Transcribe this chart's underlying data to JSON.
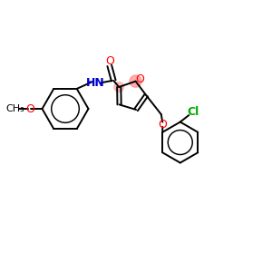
{
  "bg_color": "#ffffff",
  "atom_colors": {
    "O": "#ff0000",
    "N": "#0000cc",
    "Cl": "#00aa00",
    "C": "#000000"
  },
  "bond_color": "#000000",
  "highlight_color": "#ff8888",
  "figsize": [
    3.0,
    3.0
  ],
  "dpi": 100,
  "lw": 1.4,
  "font_size": 9
}
